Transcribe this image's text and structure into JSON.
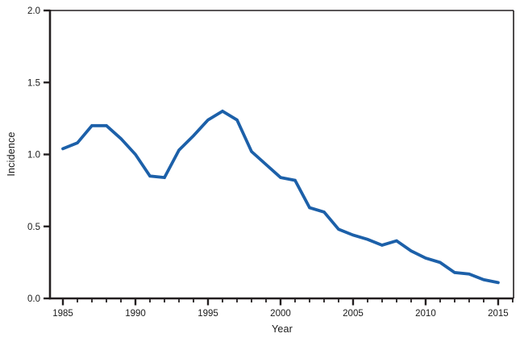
{
  "figure": {
    "background_color": "#ffffff",
    "axis_color": "#231f20",
    "text_color": "#1a1a1a"
  },
  "chart_data": {
    "type": "line",
    "title": "",
    "xlabel": "Year",
    "ylabel": "Incidence",
    "grid": false,
    "legend": "none",
    "xlim": [
      1984.11,
      2016.06
    ],
    "ylim": [
      0.0,
      2.0
    ],
    "yticks": [
      0.0,
      0.5,
      1.0,
      1.5,
      2.0
    ],
    "ytick_labels": [
      "0.0",
      "0.5",
      "1.0",
      "1.5",
      "2.0"
    ],
    "xticks_major": [
      1985,
      1990,
      1995,
      2000,
      2005,
      2010,
      2015
    ],
    "xticks_minor_step": 1,
    "x": [
      1985,
      1986,
      1987,
      1988,
      1989,
      1990,
      1991,
      1992,
      1993,
      1994,
      1995,
      1996,
      1997,
      1998,
      1999,
      2000,
      2001,
      2002,
      2003,
      2004,
      2005,
      2006,
      2007,
      2008,
      2009,
      2010,
      2011,
      2012,
      2013,
      2014,
      2015
    ],
    "series": [
      {
        "name": "Incidence",
        "color": "#1c60a9",
        "values": [
          1.04,
          1.08,
          1.2,
          1.2,
          1.11,
          1.0,
          0.85,
          0.84,
          1.03,
          1.13,
          1.24,
          1.3,
          1.24,
          1.02,
          0.93,
          0.84,
          0.82,
          0.63,
          0.6,
          0.48,
          0.44,
          0.41,
          0.37,
          0.4,
          0.33,
          0.28,
          0.25,
          0.18,
          0.17,
          0.13,
          0.11
        ]
      }
    ]
  }
}
